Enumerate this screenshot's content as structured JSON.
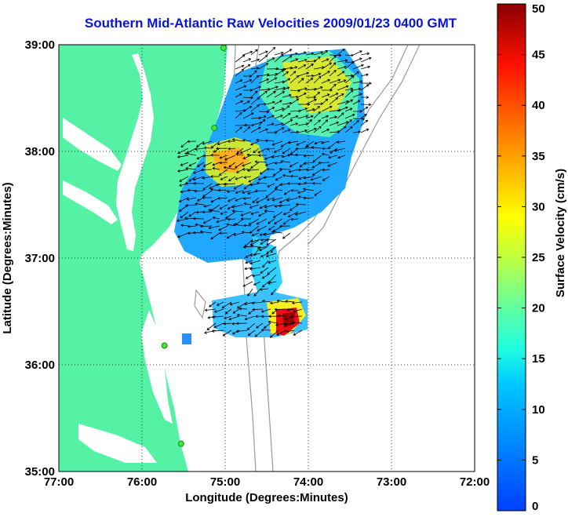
{
  "title": "Southern Mid-Atlantic Raw Velocities 2009/01/23 0400 GMT",
  "map": {
    "x_ticks": [
      "77:00",
      "76:00",
      "75:00",
      "74:00",
      "73:00",
      "72:00"
    ],
    "y_ticks": [
      "39:00",
      "38:00",
      "37:00",
      "36:00",
      "35:00"
    ],
    "xlabel": "Longitude (Degrees:Minutes)",
    "ylabel": "Latitude (Degrees:Minutes)",
    "lon_range": [
      -77,
      -72
    ],
    "lat_range": [
      35,
      39
    ],
    "grid": "dotted",
    "land_color": "#55f2a6",
    "bathymetry_color": "#9a9a9a"
  },
  "colorbar": {
    "label": "Surface Velocity (cm/s)",
    "ticks": [
      "0",
      "5",
      "10",
      "15",
      "20",
      "25",
      "30",
      "35",
      "40",
      "45",
      "50"
    ],
    "range": [
      0,
      50
    ],
    "colormap": "jet"
  },
  "stations": [
    {
      "lon": -75.02,
      "lat": 38.97
    },
    {
      "lon": -75.13,
      "lat": 38.22
    },
    {
      "lon": -75.73,
      "lat": 36.18
    },
    {
      "lon": -75.53,
      "lat": 35.26
    }
  ]
}
